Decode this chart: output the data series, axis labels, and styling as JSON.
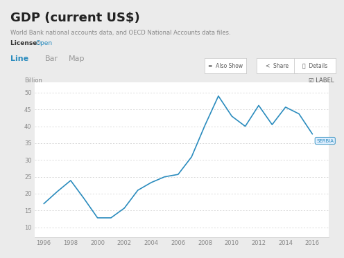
{
  "title": "GDP (current US$)",
  "subtitle": "World Bank national accounts data, and OECD National Accounts data files.",
  "license_label": "License: ",
  "license_link": "Open",
  "years": [
    1996,
    1997,
    1998,
    1999,
    2000,
    2001,
    2002,
    2003,
    2004,
    2005,
    2006,
    2007,
    2008,
    2009,
    2010,
    2011,
    2012,
    2013,
    2014,
    2015,
    2016
  ],
  "values": [
    17.0,
    20.6,
    23.9,
    18.5,
    12.8,
    12.8,
    15.7,
    21.0,
    23.3,
    25.0,
    25.7,
    30.9,
    40.3,
    49.0,
    43.0,
    40.0,
    46.2,
    40.5,
    45.7,
    43.7,
    37.7
  ],
  "line_color": "#2b8cbe",
  "bg_color": "#ebebeb",
  "chart_bg": "#ffffff",
  "tab_bg": "#ffffff",
  "grid_color": "#cccccc",
  "title_color": "#222222",
  "subtitle_color": "#888888",
  "tab_active_color": "#2b8cbe",
  "tab_inactive_color": "#999999",
  "label_bg": "#ddeeff",
  "label_border": "#2b8cbe",
  "ylim_min": 7,
  "ylim_max": 53,
  "xlim_min": 1995.3,
  "xlim_max": 2017.2,
  "yticks": [
    10,
    15,
    20,
    25,
    30,
    35,
    40,
    45,
    50
  ],
  "xticks": [
    1996,
    1998,
    2000,
    2002,
    2004,
    2006,
    2008,
    2010,
    2012,
    2014,
    2016
  ]
}
